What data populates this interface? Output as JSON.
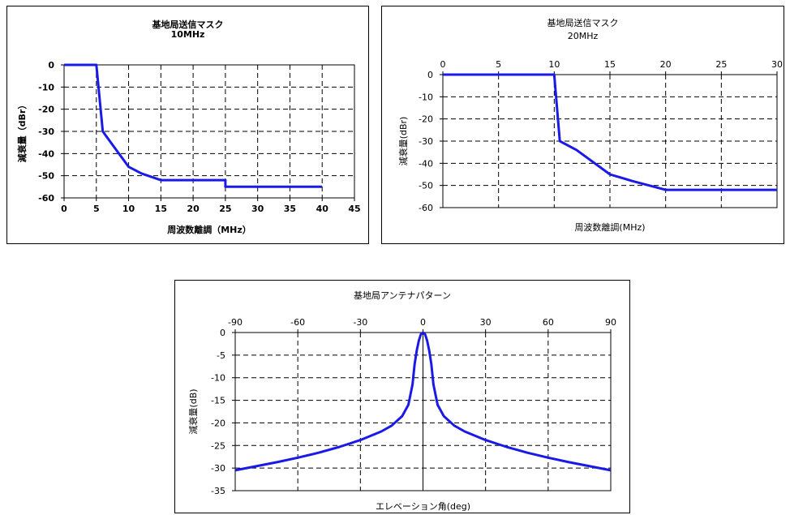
{
  "chart_data": [
    {
      "type": "line",
      "title": "基地局送信マスク",
      "subtitle": "10MHz",
      "xlabel": "周波数離調（MHz）",
      "ylabel": "減衰量（dBr）",
      "xlim": [
        0,
        45
      ],
      "ylim": [
        -60,
        0
      ],
      "xticks": [
        0,
        5,
        10,
        15,
        20,
        25,
        30,
        35,
        40,
        45
      ],
      "yticks": [
        0,
        -10,
        -20,
        -30,
        -40,
        -50,
        -60
      ],
      "xtick_labels": [
        "0",
        "5",
        "10",
        "15",
        "20",
        "25",
        "30",
        "35",
        "40",
        "45"
      ],
      "ytick_labels": [
        "0",
        "-10",
        "-20",
        "-30",
        "-40",
        "-50",
        "-60"
      ],
      "x_axis_position": "bottom",
      "grid": "dashed",
      "line_color": "#1a1ae6",
      "series": [
        {
          "x": [
            0,
            5,
            6,
            8,
            10,
            12,
            15,
            25,
            25,
            40
          ],
          "y": [
            0,
            0,
            -30,
            -38,
            -46,
            -49,
            -52,
            -52,
            -55,
            -55
          ]
        }
      ]
    },
    {
      "type": "line",
      "title": "基地局送信マスク",
      "subtitle": "20MHz",
      "xlabel": "周波数離調(MHz)",
      "ylabel": "減衰量(dBr)",
      "xlim": [
        0,
        30
      ],
      "ylim": [
        -60,
        0
      ],
      "xticks": [
        0,
        5,
        10,
        15,
        20,
        25,
        30
      ],
      "yticks": [
        0,
        -10,
        -20,
        -30,
        -40,
        -50,
        -60
      ],
      "xtick_labels": [
        "0",
        "5",
        "10",
        "15",
        "20",
        "25",
        "30"
      ],
      "ytick_labels": [
        "0",
        "-10",
        "-20",
        "-30",
        "-40",
        "-50",
        "-60"
      ],
      "x_axis_position": "top",
      "grid": "dashed",
      "line_color": "#1a1ae6",
      "series": [
        {
          "x": [
            0,
            10,
            10.5,
            12,
            15,
            17,
            20,
            30
          ],
          "y": [
            0,
            0,
            -30,
            -34,
            -45,
            -48,
            -52,
            -52
          ]
        }
      ]
    },
    {
      "type": "line",
      "title": "基地局アンテナパターン",
      "xlabel": "エレベーション角(deg)",
      "ylabel": "減衰量(dB)",
      "xlim": [
        -90,
        90
      ],
      "ylim": [
        -35,
        0
      ],
      "xticks": [
        -90,
        -60,
        -30,
        0,
        30,
        60,
        90
      ],
      "yticks": [
        0,
        -5,
        -10,
        -15,
        -20,
        -25,
        -30,
        -35
      ],
      "xtick_labels": [
        "-90",
        "-60",
        "-30",
        "0",
        "30",
        "60",
        "90"
      ],
      "ytick_labels": [
        "0",
        "-5",
        "-10",
        "-15",
        "-20",
        "-25",
        "-30",
        "-35"
      ],
      "x_axis_position": "top",
      "grid": "dashed",
      "line_color": "#1a1ae6",
      "series": [
        {
          "x": [
            -90,
            -80,
            -70,
            -60,
            -50,
            -40,
            -30,
            -20,
            -15,
            -10,
            -7,
            -5,
            -4,
            -3,
            -2,
            -1,
            0,
            1,
            2,
            3,
            4,
            5,
            7,
            10,
            15,
            20,
            30,
            40,
            50,
            60,
            70,
            80,
            90
          ],
          "y": [
            -30.5,
            -29.6,
            -28.7,
            -27.7,
            -26.6,
            -25.3,
            -23.8,
            -21.9,
            -20.6,
            -18.5,
            -16.0,
            -11.5,
            -7.0,
            -4.0,
            -1.8,
            -0.4,
            0,
            -0.4,
            -1.8,
            -4.0,
            -7.0,
            -11.5,
            -16.0,
            -18.5,
            -20.6,
            -21.9,
            -23.8,
            -25.3,
            -26.6,
            -27.7,
            -28.7,
            -29.6,
            -30.5
          ]
        }
      ]
    }
  ]
}
